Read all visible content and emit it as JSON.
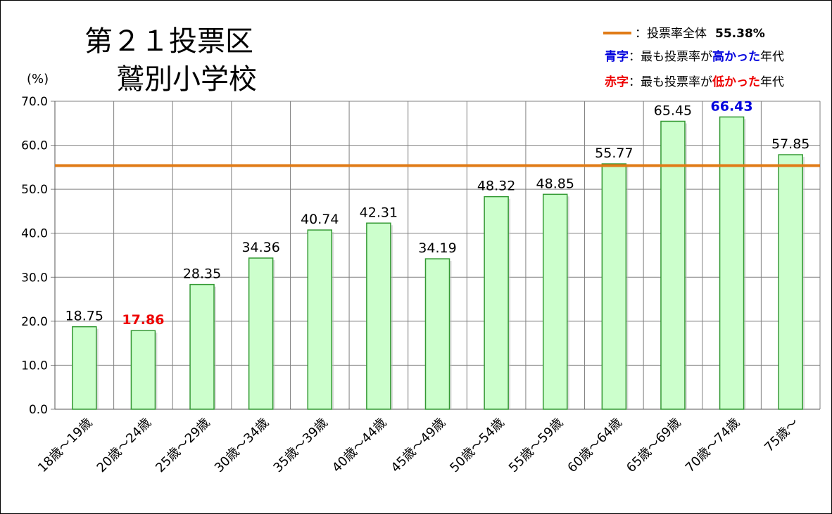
{
  "chart_data": {
    "type": "bar",
    "title_line1": "第２１投票区",
    "title_line2": "鷲別小学校",
    "ylabel": "(%)",
    "ylim": [
      0,
      70
    ],
    "yticks": [
      "0.0",
      "10.0",
      "20.0",
      "30.0",
      "40.0",
      "50.0",
      "60.0",
      "70.0"
    ],
    "ytick_values": [
      0,
      10,
      20,
      30,
      40,
      50,
      60,
      70
    ],
    "grid": true,
    "categories": [
      "18歳～19歳",
      "20歳～24歳",
      "25歳～29歳",
      "30歳～34歳",
      "35歳～39歳",
      "40歳～44歳",
      "45歳～49歳",
      "50歳～54歳",
      "55歳～59歳",
      "60歳～64歳",
      "65歳～69歳",
      "70歳～74歳",
      "75歳～"
    ],
    "values": [
      18.75,
      17.86,
      28.35,
      34.36,
      40.74,
      42.31,
      34.19,
      48.32,
      48.85,
      55.77,
      65.45,
      66.43,
      57.85
    ],
    "value_labels": [
      "18.75",
      "17.86",
      "28.35",
      "34.36",
      "40.74",
      "42.31",
      "34.19",
      "48.32",
      "48.85",
      "55.77",
      "65.45",
      "66.43",
      "57.85"
    ],
    "highest_index": 11,
    "lowest_index": 1,
    "overall_rate": 55.38,
    "legend_position": "top-right",
    "legend": {
      "line_label": "：投票率全体",
      "line_value": "55.38%",
      "blue_key": "青字",
      "blue_pre": "：最も投票率が",
      "blue_emph": "高かった",
      "blue_post": "年代",
      "red_key": "赤字",
      "red_pre": "：最も投票率が",
      "red_emph": "低かった",
      "red_post": "年代"
    },
    "colors": {
      "bar_fill": "#ccffcc",
      "bar_stroke": "#339933",
      "line": "#e07b17",
      "high": "#0000dd",
      "low": "#ee0000",
      "grid": "#808080",
      "text": "#000000"
    }
  }
}
